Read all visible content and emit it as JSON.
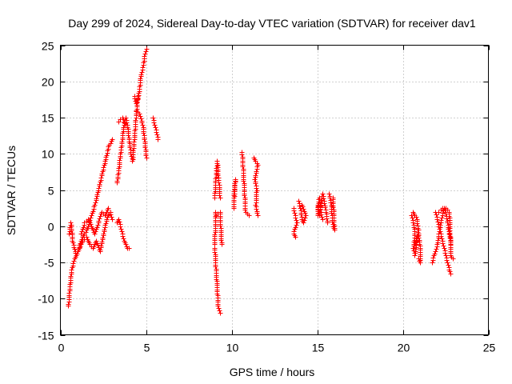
{
  "chart_data": {
    "type": "scatter",
    "title": "Day 299 of 2024, Sidereal Day-to-day VTEC variation (SDTVAR) for receiver dav1",
    "xlabel": "GPS time / hours",
    "ylabel": "SDTVAR / TECUs",
    "xlim": [
      0,
      25
    ],
    "ylim": [
      -15,
      25
    ],
    "xticks": [
      0,
      5,
      10,
      15,
      20,
      25
    ],
    "yticks": [
      -15,
      -10,
      -5,
      0,
      5,
      10,
      15,
      20,
      25
    ],
    "grid": true,
    "marker": "+",
    "marker_color": "#ff0000",
    "series": [
      {
        "name": "SDTVAR",
        "segments": [
          [
            [
              0.45,
              -11.0
            ],
            [
              0.55,
              -8.0
            ],
            [
              0.65,
              -6.0
            ],
            [
              0.8,
              -4.5
            ],
            [
              1.0,
              -3.5
            ],
            [
              1.2,
              -2.0
            ],
            [
              1.4,
              -1.0
            ],
            [
              1.6,
              0.0
            ],
            [
              1.8,
              1.5
            ],
            [
              2.0,
              3.0
            ],
            [
              2.2,
              5.0
            ],
            [
              2.4,
              7.0
            ],
            [
              2.6,
              9.0
            ],
            [
              2.8,
              11.0
            ],
            [
              3.0,
              12.0
            ]
          ],
          [
            [
              0.5,
              -1.0
            ],
            [
              0.6,
              0.5
            ],
            [
              0.7,
              -2.0
            ],
            [
              0.9,
              -4.0
            ],
            [
              1.1,
              -3.0
            ],
            [
              1.3,
              -2.0
            ],
            [
              1.5,
              -1.5
            ],
            [
              1.7,
              -2.5
            ],
            [
              1.9,
              -3.0
            ],
            [
              2.1,
              -2.0
            ],
            [
              2.3,
              -3.5
            ],
            [
              2.5,
              -1.0
            ],
            [
              2.7,
              1.0
            ],
            [
              2.9,
              2.0
            ],
            [
              3.0,
              1.0
            ]
          ],
          [
            [
              1.2,
              -1.0
            ],
            [
              1.4,
              0.5
            ],
            [
              1.6,
              1.0
            ],
            [
              1.8,
              0.0
            ],
            [
              2.0,
              -1.0
            ],
            [
              2.2,
              0.5
            ],
            [
              2.4,
              2.0
            ],
            [
              2.6,
              1.5
            ],
            [
              2.8,
              2.5
            ]
          ],
          [
            [
              3.3,
              0.5
            ],
            [
              3.4,
              1.0
            ],
            [
              3.5,
              0.0
            ],
            [
              3.6,
              -1.0
            ],
            [
              3.7,
              -2.0
            ],
            [
              3.8,
              -2.5
            ],
            [
              3.9,
              -3.0
            ],
            [
              4.0,
              -3.0
            ]
          ],
          [
            [
              3.3,
              6.0
            ],
            [
              3.4,
              8.0
            ],
            [
              3.5,
              10.0
            ],
            [
              3.6,
              12.0
            ],
            [
              3.7,
              14.0
            ],
            [
              3.8,
              15.0
            ],
            [
              3.9,
              14.0
            ],
            [
              4.0,
              12.0
            ],
            [
              4.1,
              10.0
            ],
            [
              4.2,
              9.0
            ],
            [
              4.3,
              12.0
            ],
            [
              4.4,
              15.0
            ],
            [
              4.5,
              18.0
            ]
          ],
          [
            [
              3.4,
              14.5
            ],
            [
              3.6,
              15.0
            ],
            [
              3.8,
              14.0
            ]
          ],
          [
            [
              4.3,
              18.0
            ],
            [
              4.4,
              17.0
            ],
            [
              4.5,
              17.5
            ],
            [
              4.6,
              19.0
            ],
            [
              4.7,
              21.0
            ],
            [
              4.8,
              22.0
            ],
            [
              4.9,
              23.5
            ],
            [
              5.0,
              24.5
            ]
          ],
          [
            [
              4.4,
              16.0
            ],
            [
              4.6,
              15.5
            ],
            [
              4.8,
              14.0
            ],
            [
              4.9,
              12.0
            ],
            [
              5.0,
              9.5
            ]
          ],
          [
            [
              5.4,
              15.0
            ],
            [
              5.5,
              14.0
            ],
            [
              5.6,
              13.0
            ],
            [
              5.7,
              12.0
            ]
          ],
          [
            [
              9.0,
              -3.0
            ],
            [
              9.05,
              -5.0
            ],
            [
              9.1,
              -7.0
            ],
            [
              9.15,
              -9.0
            ],
            [
              9.2,
              -11.0
            ],
            [
              9.3,
              -12.0
            ]
          ],
          [
            [
              9.0,
              4.0
            ],
            [
              9.05,
              6.0
            ],
            [
              9.1,
              8.0
            ],
            [
              9.15,
              9.0
            ],
            [
              9.2,
              7.0
            ],
            [
              9.25,
              6.0
            ],
            [
              9.3,
              4.0
            ]
          ],
          [
            [
              9.0,
              -2.5
            ],
            [
              9.05,
              2.0
            ],
            [
              9.1,
              1.5
            ],
            [
              9.3,
              2.0
            ],
            [
              9.4,
              -2.5
            ]
          ],
          [
            [
              10.1,
              4.0
            ],
            [
              10.2,
              6.5
            ],
            [
              10.1,
              2.5
            ]
          ],
          [
            [
              10.6,
              10.2
            ],
            [
              10.8,
              2.0
            ],
            [
              11.0,
              1.5
            ]
          ],
          [
            [
              11.3,
              9.5
            ],
            [
              11.4,
              9.0
            ],
            [
              11.5,
              8.5
            ],
            [
              11.35,
              6.5
            ],
            [
              11.45,
              5.0
            ],
            [
              11.4,
              3.0
            ],
            [
              11.5,
              1.5
            ]
          ],
          [
            [
              13.6,
              2.5
            ],
            [
              13.7,
              1.5
            ],
            [
              13.8,
              0.5
            ],
            [
              13.6,
              -1.0
            ],
            [
              13.7,
              -1.5
            ]
          ],
          [
            [
              13.9,
              3.5
            ],
            [
              14.0,
              2.5
            ],
            [
              14.1,
              1.0
            ],
            [
              14.2,
              0.5
            ],
            [
              14.3,
              1.5
            ],
            [
              14.1,
              3.0
            ]
          ],
          [
            [
              15.0,
              3.0
            ],
            [
              15.1,
              1.5
            ],
            [
              15.2,
              3.0
            ],
            [
              15.3,
              4.5
            ],
            [
              15.4,
              3.5
            ],
            [
              15.5,
              2.0
            ],
            [
              15.6,
              0.5
            ]
          ],
          [
            [
              15.0,
              1.5
            ],
            [
              15.1,
              4.0
            ],
            [
              15.2,
              2.0
            ],
            [
              15.3,
              1.0
            ]
          ],
          [
            [
              15.7,
              4.5
            ],
            [
              15.8,
              3.0
            ],
            [
              15.85,
              1.5
            ],
            [
              15.9,
              0.0
            ],
            [
              16.0,
              -0.5
            ],
            [
              15.9,
              4.0
            ]
          ],
          [
            [
              20.5,
              1.5
            ],
            [
              20.6,
              0.5
            ],
            [
              20.7,
              -1.0
            ],
            [
              20.6,
              -3.0
            ],
            [
              20.7,
              -4.0
            ],
            [
              20.8,
              -2.0
            ],
            [
              20.9,
              -1.0
            ],
            [
              21.0,
              -3.0
            ],
            [
              21.0,
              -5.0
            ],
            [
              20.9,
              -4.5
            ]
          ],
          [
            [
              20.6,
              2.0
            ],
            [
              20.8,
              1.0
            ],
            [
              20.9,
              -0.5
            ],
            [
              20.7,
              -2.5
            ]
          ],
          [
            [
              21.7,
              -5.0
            ],
            [
              21.8,
              -4.0
            ],
            [
              21.9,
              -3.5
            ],
            [
              22.0,
              -2.5
            ],
            [
              22.1,
              -1.0
            ],
            [
              22.2,
              0.5
            ],
            [
              22.3,
              1.5
            ],
            [
              22.4,
              2.5
            ],
            [
              22.5,
              2.0
            ],
            [
              22.6,
              0.5
            ],
            [
              22.7,
              -1.0
            ],
            [
              22.8,
              -2.5
            ]
          ],
          [
            [
              21.9,
              2.0
            ],
            [
              22.0,
              1.0
            ],
            [
              22.1,
              0.0
            ],
            [
              22.2,
              -1.0
            ],
            [
              22.3,
              -2.0
            ],
            [
              22.4,
              -3.0
            ],
            [
              22.5,
              -4.0
            ],
            [
              22.6,
              -5.0
            ],
            [
              22.7,
              -6.0
            ],
            [
              22.8,
              -6.5
            ]
          ],
          [
            [
              22.1,
              2.0
            ],
            [
              22.3,
              2.5
            ],
            [
              22.5,
              2.5
            ],
            [
              22.7,
              2.0
            ],
            [
              22.8,
              -4.0
            ],
            [
              22.9,
              -4.5
            ]
          ]
        ]
      }
    ]
  }
}
